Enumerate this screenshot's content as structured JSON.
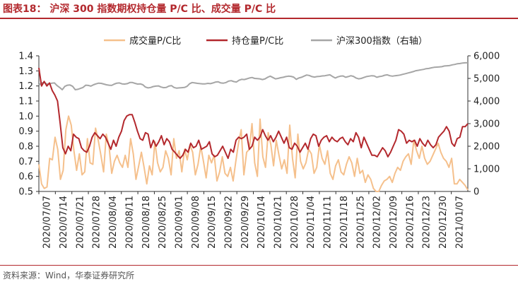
{
  "header": {
    "figure_label": "图表18：",
    "title": "沪深 300 指数期权持仓量 P/C 比、成交量 P/C 比"
  },
  "footer": {
    "source": "资料来源：Wind，华泰证券研究所"
  },
  "chart_data": {
    "type": "line",
    "left_axis": {
      "ylim": [
        0.5,
        1.4
      ],
      "ticks": [
        "1.4",
        "1.3",
        "1.2",
        "1.1",
        "1.0",
        "0.9",
        "0.8",
        "0.7",
        "0.6",
        "0.5"
      ]
    },
    "right_axis": {
      "ylim": [
        0,
        6000
      ],
      "ticks": [
        "6,000",
        "5,000",
        "4,000",
        "3,000",
        "2,000",
        "1,000",
        "0"
      ]
    },
    "x_ticks": [
      "2020/07/07",
      "2020/07/14",
      "2020/07/21",
      "2020/07/28",
      "2020/08/04",
      "2020/08/11",
      "2020/08/18",
      "2020/08/25",
      "2020/09/01",
      "2020/09/08",
      "2020/09/15",
      "2020/09/22",
      "2020/09/29",
      "2020/10/14",
      "2020/10/21",
      "2020/10/28",
      "2020/11/04",
      "2020/11/11",
      "2020/11/18",
      "2020/11/25",
      "2020/12/02",
      "2020/12/09",
      "2020/12/16",
      "2020/12/23",
      "2020/12/30",
      "2021/01/07"
    ],
    "series": [
      {
        "name": "成交量P/C比",
        "axis": "left",
        "color": "#f5c08c",
        "values": [
          0.68,
          0.55,
          0.52,
          0.53,
          0.72,
          0.71,
          0.86,
          0.78,
          0.58,
          0.64,
          0.91,
          1.0,
          0.94,
          0.77,
          0.64,
          0.75,
          0.61,
          0.63,
          0.85,
          0.69,
          0.68,
          0.92,
          0.84,
          0.74,
          0.63,
          0.88,
          0.8,
          0.62,
          0.7,
          0.74,
          0.69,
          0.66,
          0.74,
          0.66,
          0.85,
          0.75,
          0.58,
          0.67,
          0.76,
          0.66,
          0.55,
          0.67,
          0.61,
          0.83,
          0.69,
          0.63,
          0.66,
          0.77,
          0.72,
          0.61,
          0.85,
          0.72,
          0.77,
          0.63,
          0.78,
          0.71,
          0.81,
          0.76,
          0.61,
          0.68,
          0.8,
          0.7,
          0.59,
          0.74,
          0.69,
          0.74,
          0.57,
          0.63,
          0.73,
          0.62,
          0.6,
          0.66,
          0.57,
          0.7,
          0.82,
          0.91,
          0.61,
          0.76,
          0.78,
          0.95,
          0.69,
          0.6,
          0.98,
          0.73,
          0.66,
          0.89,
          0.81,
          0.67,
          0.84,
          0.74,
          0.65,
          0.71,
          0.62,
          0.94,
          0.72,
          0.59,
          0.88,
          0.7,
          0.65,
          0.69,
          0.78,
          0.75,
          0.62,
          0.66,
          0.81,
          0.72,
          0.68,
          0.77,
          0.62,
          0.58,
          0.67,
          0.71,
          0.63,
          0.61,
          0.68,
          0.73,
          0.69,
          0.6,
          0.72,
          0.62,
          0.64,
          0.56,
          0.61,
          0.58,
          0.52,
          0.5,
          0.49,
          0.54,
          0.57,
          0.58,
          0.6,
          0.56,
          0.62,
          0.66,
          0.64,
          0.7,
          0.73,
          0.75,
          0.68,
          0.84,
          0.77,
          0.72,
          0.8,
          0.72,
          0.68,
          0.7,
          0.74,
          0.78,
          0.82,
          0.76,
          0.72,
          0.7,
          0.66,
          0.72,
          0.55,
          0.55,
          0.58,
          0.56,
          0.54,
          0.51
        ]
      },
      {
        "name": "持仓量P/C比",
        "axis": "left",
        "color": "#b3282d",
        "values": [
          1.32,
          1.2,
          1.23,
          1.2,
          1.22,
          1.17,
          1.14,
          1.1,
          0.95,
          0.79,
          0.75,
          0.8,
          0.77,
          0.88,
          0.86,
          0.85,
          0.79,
          0.77,
          0.76,
          0.8,
          0.86,
          0.89,
          0.87,
          0.85,
          0.88,
          0.86,
          0.82,
          0.78,
          0.84,
          0.8,
          0.86,
          0.9,
          0.97,
          1.0,
          1.01,
          1.01,
          0.96,
          0.9,
          0.85,
          0.84,
          0.89,
          0.88,
          0.79,
          0.84,
          0.8,
          0.83,
          0.87,
          0.81,
          0.85,
          0.83,
          0.78,
          0.76,
          0.74,
          0.72,
          0.74,
          0.78,
          0.76,
          0.82,
          0.79,
          0.8,
          0.84,
          0.78,
          0.79,
          0.8,
          0.83,
          0.75,
          0.73,
          0.74,
          0.77,
          0.8,
          0.76,
          0.72,
          0.78,
          0.76,
          0.84,
          0.86,
          0.85,
          0.86,
          0.88,
          0.78,
          0.8,
          0.86,
          0.84,
          0.86,
          0.91,
          0.87,
          0.84,
          0.87,
          0.83,
          0.86,
          0.9,
          0.86,
          0.82,
          0.86,
          0.79,
          0.78,
          0.82,
          0.8,
          0.76,
          0.79,
          0.82,
          0.78,
          0.85,
          0.88,
          0.87,
          0.8,
          0.84,
          0.86,
          0.87,
          0.83,
          0.86,
          0.84,
          0.83,
          0.85,
          0.86,
          0.83,
          0.81,
          0.85,
          0.83,
          0.89,
          0.86,
          0.79,
          0.86,
          0.82,
          0.78,
          0.74,
          0.74,
          0.73,
          0.76,
          0.79,
          0.77,
          0.73,
          0.76,
          0.8,
          0.84,
          0.91,
          0.9,
          0.88,
          0.82,
          0.84,
          0.83,
          0.84,
          0.8,
          0.85,
          0.82,
          0.8,
          0.84,
          0.81,
          0.79,
          0.81,
          0.86,
          0.88,
          0.9,
          0.93,
          0.9,
          0.82,
          0.8,
          0.85,
          0.86,
          0.93,
          0.93,
          0.95
        ]
      },
      {
        "name": "沪深300指数（右轴）",
        "axis": "right",
        "color": "#a6a6a6",
        "values": [
          4700,
          4800,
          4820,
          4760,
          4750,
          4790,
          4800,
          4680,
          4600,
          4500,
          4650,
          4700,
          4710,
          4650,
          4500,
          4520,
          4560,
          4600,
          4700,
          4690,
          4660,
          4720,
          4760,
          4790,
          4780,
          4750,
          4720,
          4700,
          4690,
          4750,
          4790,
          4800,
          4760,
          4750,
          4770,
          4820,
          4820,
          4780,
          4750,
          4760,
          4720,
          4620,
          4580,
          4600,
          4640,
          4660,
          4670,
          4620,
          4590,
          4600,
          4660,
          4680,
          4600,
          4570,
          4580,
          4590,
          4600,
          4650,
          4770,
          4820,
          4800,
          4780,
          4770,
          4760,
          4760,
          4780,
          4770,
          4800,
          4840,
          4850,
          4800,
          4790,
          4820,
          4880,
          4900,
          4860,
          4840,
          4920,
          4960,
          4950,
          4980,
          5020,
          5040,
          5000,
          4990,
          4980,
          4950,
          4980,
          5050,
          5100,
          5040,
          4980,
          5000,
          5030,
          5050,
          5080,
          5100,
          5090,
          5060,
          4960,
          5020,
          5050,
          5100,
          5150,
          5130,
          5080,
          5060,
          5080,
          5090,
          5110,
          5120,
          5140,
          5160,
          5080,
          5020,
          5070,
          5100,
          5110,
          5050,
          5080,
          5120,
          5090,
          5020,
          4980,
          5000,
          5040,
          5080,
          5100,
          5120,
          5110,
          5050,
          5080,
          5100,
          5140,
          5160,
          5120,
          5100,
          5120,
          5130,
          5150,
          5180,
          5210,
          5240,
          5270,
          5300,
          5340,
          5360,
          5380,
          5400,
          5430,
          5440,
          5470,
          5490,
          5500,
          5510,
          5520,
          5550,
          5560,
          5570,
          5600,
          5620,
          5650,
          5660,
          5680,
          5690,
          5690
        ]
      }
    ],
    "legend_position": "top",
    "grid": false
  }
}
